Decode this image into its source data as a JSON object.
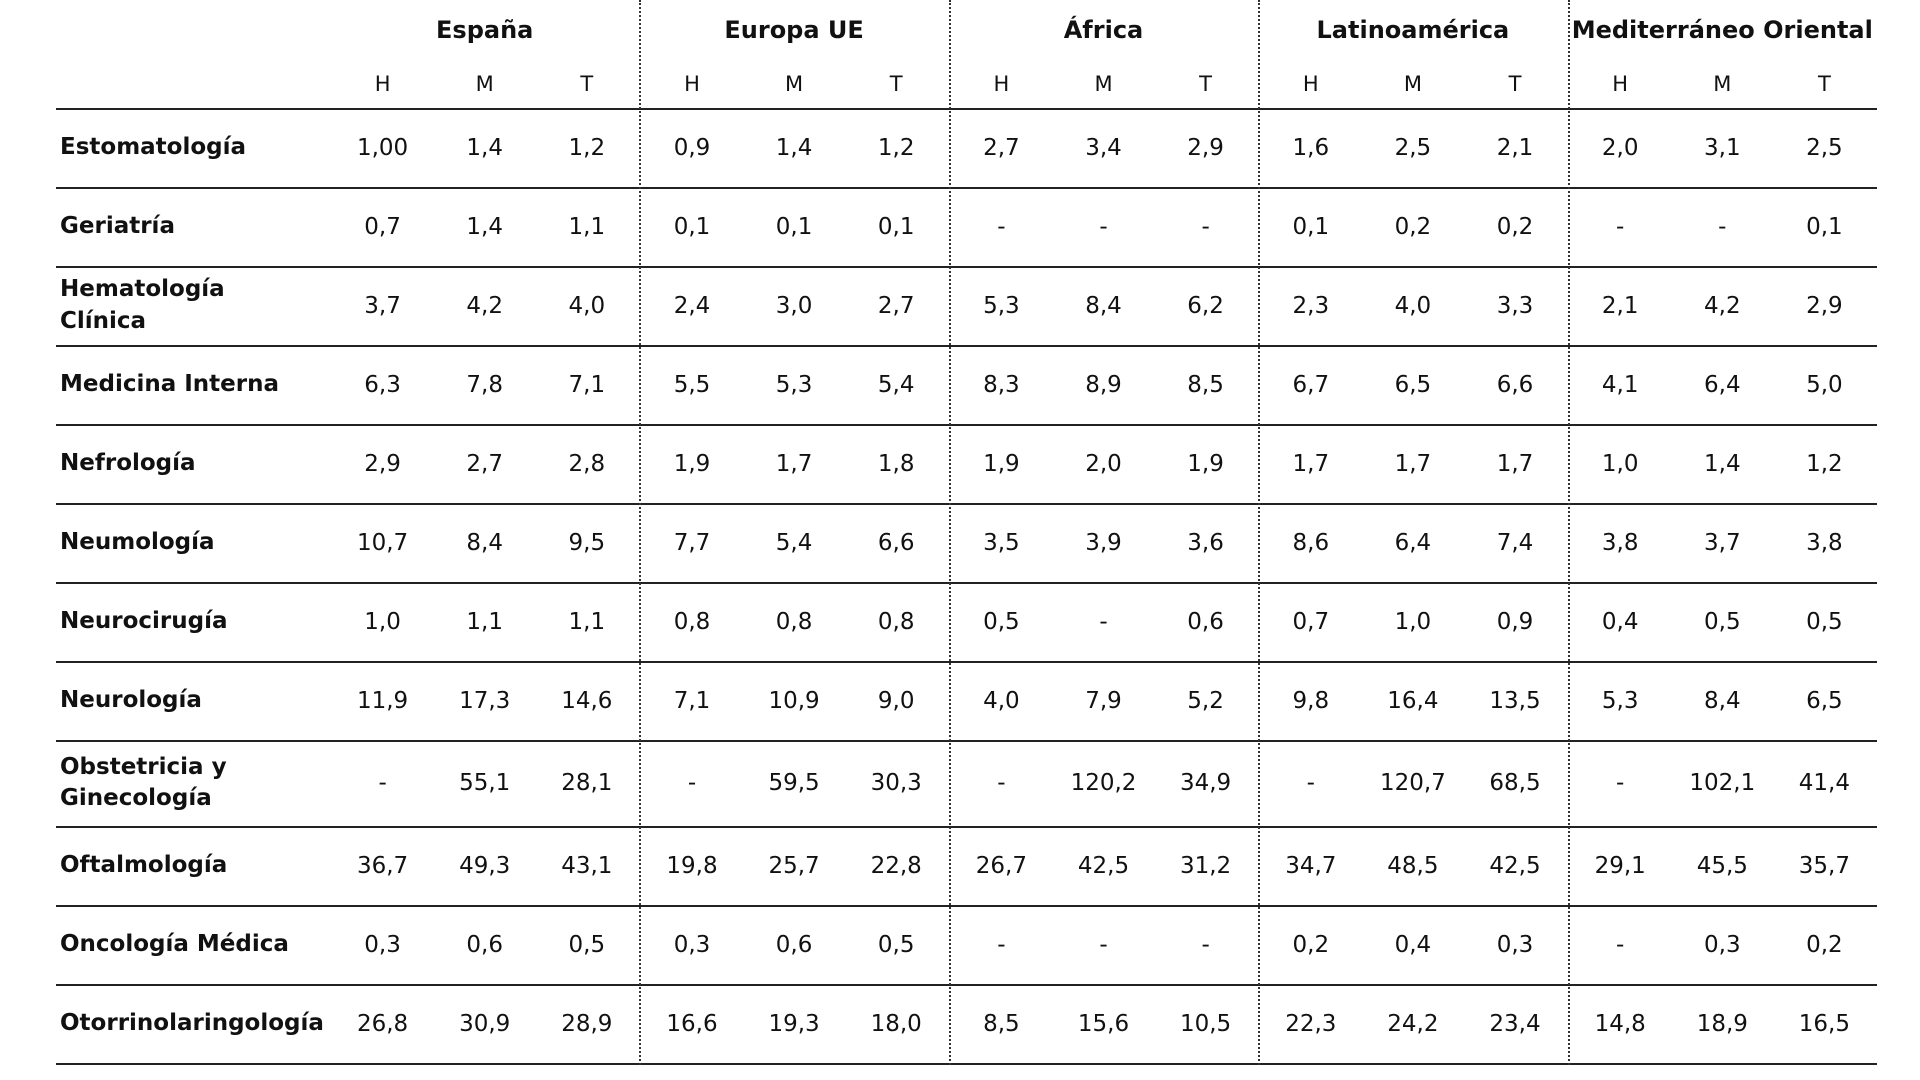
{
  "table": {
    "groups": [
      "España",
      "Europa UE",
      "África",
      "Latinoamérica",
      "Mediterráneo Oriental"
    ],
    "subheaders": [
      "H",
      "M",
      "T",
      "H",
      "M",
      "T",
      "H",
      "M",
      "T",
      "H",
      "M",
      "T",
      "H",
      "M",
      "T"
    ],
    "rows": [
      {
        "label": "Estomatología",
        "cells": [
          "1,00",
          "1,4",
          "1,2",
          "0,9",
          "1,4",
          "1,2",
          "2,7",
          "3,4",
          "2,9",
          "1,6",
          "2,5",
          "2,1",
          "2,0",
          "3,1",
          "2,5"
        ]
      },
      {
        "label": "Geriatría",
        "cells": [
          "0,7",
          "1,4",
          "1,1",
          "0,1",
          "0,1",
          "0,1",
          "-",
          "-",
          "-",
          "0,1",
          "0,2",
          "0,2",
          "-",
          "-",
          "0,1"
        ]
      },
      {
        "label": "Hematología Clínica",
        "cells": [
          "3,7",
          "4,2",
          "4,0",
          "2,4",
          "3,0",
          "2,7",
          "5,3",
          "8,4",
          "6,2",
          "2,3",
          "4,0",
          "3,3",
          "2,1",
          "4,2",
          "2,9"
        ]
      },
      {
        "label": "Medicina Interna",
        "cells": [
          "6,3",
          "7,8",
          "7,1",
          "5,5",
          "5,3",
          "5,4",
          "8,3",
          "8,9",
          "8,5",
          "6,7",
          "6,5",
          "6,6",
          "4,1",
          "6,4",
          "5,0"
        ]
      },
      {
        "label": "Nefrología",
        "cells": [
          "2,9",
          "2,7",
          "2,8",
          "1,9",
          "1,7",
          "1,8",
          "1,9",
          "2,0",
          "1,9",
          "1,7",
          "1,7",
          "1,7",
          "1,0",
          "1,4",
          "1,2"
        ]
      },
      {
        "label": "Neumología",
        "cells": [
          "10,7",
          "8,4",
          "9,5",
          "7,7",
          "5,4",
          "6,6",
          "3,5",
          "3,9",
          "3,6",
          "8,6",
          "6,4",
          "7,4",
          "3,8",
          "3,7",
          "3,8"
        ]
      },
      {
        "label": "Neurocirugía",
        "cells": [
          "1,0",
          "1,1",
          "1,1",
          "0,8",
          "0,8",
          "0,8",
          "0,5",
          "-",
          "0,6",
          "0,7",
          "1,0",
          "0,9",
          "0,4",
          "0,5",
          "0,5"
        ]
      },
      {
        "label": "Neurología",
        "cells": [
          "11,9",
          "17,3",
          "14,6",
          "7,1",
          "10,9",
          "9,0",
          "4,0",
          "7,9",
          "5,2",
          "9,8",
          "16,4",
          "13,5",
          "5,3",
          "8,4",
          "6,5"
        ]
      },
      {
        "label": "Obstetricia y Ginecología",
        "cells": [
          "-",
          "55,1",
          "28,1",
          "-",
          "59,5",
          "30,3",
          "-",
          "120,2",
          "34,9",
          "-",
          "120,7",
          "68,5",
          "-",
          "102,1",
          "41,4"
        ]
      },
      {
        "label": "Oftalmología",
        "cells": [
          "36,7",
          "49,3",
          "43,1",
          "19,8",
          "25,7",
          "22,8",
          "26,7",
          "42,5",
          "31,2",
          "34,7",
          "48,5",
          "42,5",
          "29,1",
          "45,5",
          "35,7"
        ]
      },
      {
        "label": "Oncología Médica",
        "cells": [
          "0,3",
          "0,6",
          "0,5",
          "0,3",
          "0,6",
          "0,5",
          "-",
          "-",
          "-",
          "0,2",
          "0,4",
          "0,3",
          "-",
          "0,3",
          "0,2"
        ]
      },
      {
        "label": "Otorrinolaringología",
        "cells": [
          "26,8",
          "30,9",
          "28,9",
          "16,6",
          "19,3",
          "18,0",
          "8,5",
          "15,6",
          "10,5",
          "22,3",
          "24,2",
          "23,4",
          "14,8",
          "18,9",
          "16,5"
        ]
      }
    ]
  }
}
